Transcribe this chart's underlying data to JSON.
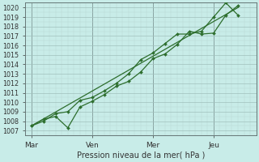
{
  "background_color": "#c8ece8",
  "grid_major_color": "#a0c0bc",
  "grid_minor_color": "#b8d8d4",
  "line_color": "#2d6e2d",
  "marker_color": "#2d6e2d",
  "ylabel_ticks": [
    1007,
    1008,
    1009,
    1010,
    1011,
    1012,
    1013,
    1014,
    1015,
    1016,
    1017,
    1018,
    1019,
    1020
  ],
  "ylim": [
    1006.5,
    1020.5
  ],
  "xlabel": "Pression niveau de la mer( hPa )",
  "day_labels": [
    "Mar",
    "Ven",
    "Mer",
    "Jeu"
  ],
  "day_positions": [
    0,
    5,
    10,
    15
  ],
  "xlim": [
    -0.5,
    18.5
  ],
  "series1_x": [
    0,
    1,
    2,
    3,
    4,
    5,
    6,
    7,
    8,
    9,
    10,
    11,
    12,
    13,
    14,
    15,
    16,
    17
  ],
  "series1_y": [
    1007.5,
    1008.2,
    1008.5,
    1007.3,
    1009.5,
    1010.1,
    1010.8,
    1011.7,
    1012.2,
    1013.2,
    1014.6,
    1015.1,
    1016.1,
    1017.5,
    1017.2,
    1017.3,
    1019.2,
    1020.2
  ],
  "series2_x": [
    0,
    1,
    2,
    3,
    4,
    5,
    6,
    7,
    8,
    9,
    10,
    11,
    12,
    13,
    14,
    15,
    16,
    17
  ],
  "series2_y": [
    1007.5,
    1008.0,
    1008.8,
    1009.0,
    1010.2,
    1010.5,
    1011.2,
    1012.0,
    1013.0,
    1014.5,
    1015.2,
    1016.2,
    1017.2,
    1017.2,
    1017.5,
    1019.0,
    1020.5,
    1019.2
  ],
  "series3_x": [
    0,
    17
  ],
  "series3_y": [
    1007.5,
    1020.0
  ],
  "vline_positions": [
    0,
    5,
    10,
    15
  ]
}
